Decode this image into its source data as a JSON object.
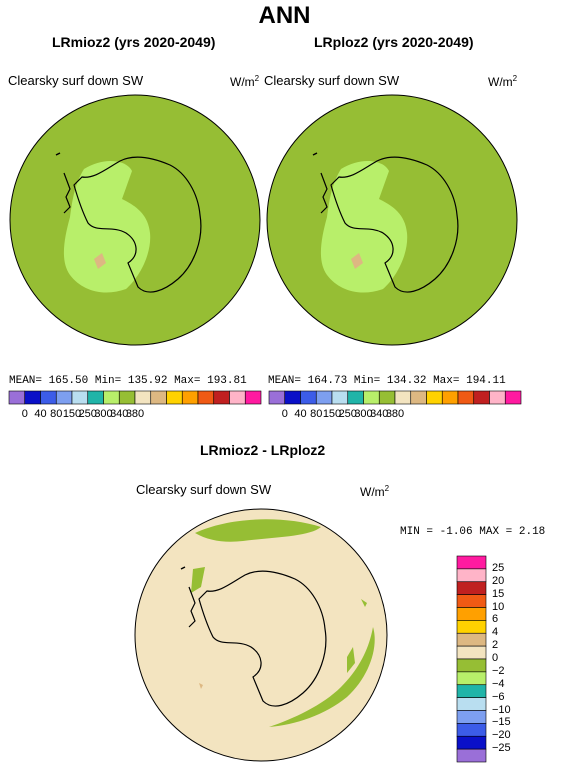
{
  "title": "ANN",
  "panels": [
    {
      "title": "LRmioz2 (yrs 2020-2049)",
      "variable": "Clearsky surf down SW",
      "units_base": "W/m",
      "units_exp": "2",
      "stats": {
        "mean_label": "MEAN=",
        "mean": "165.50",
        "min_label": "Min=",
        "min": "135.92",
        "max_label": "Max=",
        "max": "193.81"
      }
    },
    {
      "title": "LRploz2 (yrs 2020-2049)",
      "variable": "Clearsky surf down SW",
      "units_base": "W/m",
      "units_exp": "2",
      "stats": {
        "mean_label": "MEAN=",
        "mean": "164.73",
        "min_label": "Min=",
        "min": "134.32",
        "max_label": "Max=",
        "max": "194.11"
      }
    }
  ],
  "top_colorbar": {
    "labels": [
      "0",
      "40",
      "80",
      "150",
      "250",
      "300",
      "340",
      "380"
    ],
    "colors": [
      "#9a6fd8",
      "#0a10c8",
      "#3c5ce8",
      "#7d9ff0",
      "#b9def0",
      "#20b4a8",
      "#b8ef6a",
      "#96be34",
      "#f3e4c0",
      "#ddb882",
      "#ffd200",
      "#ffa000",
      "#f05a14",
      "#c02020",
      "#ffb4c8",
      "#ff1aa0"
    ]
  },
  "diff": {
    "title": "LRmioz2 - LRploz2",
    "variable": "Clearsky surf down SW",
    "units_base": "W/m",
    "units_exp": "2",
    "min_label": "MIN =",
    "min": "-1.06",
    "max_label": "MAX =",
    "max": "2.18",
    "colorbar_labels": [
      "25",
      "20",
      "15",
      "10",
      "6",
      "4",
      "2",
      "0",
      "−2",
      "−4",
      "−6",
      "−10",
      "−15",
      "−20",
      "−25"
    ],
    "colorbar_colors": [
      "#ff1aa0",
      "#ffb4c8",
      "#c02020",
      "#f05a14",
      "#ffa000",
      "#ffd200",
      "#ddb882",
      "#f3e4c0",
      "#96be34",
      "#b8ef6a",
      "#20b4a8",
      "#b9def0",
      "#7d9ff0",
      "#3c5ce8",
      "#0a10c8",
      "#9a6fd8"
    ]
  },
  "colors": {
    "green_dark": "#96be34",
    "green_light": "#b8ef6a",
    "beige": "#f3e4c0",
    "tan": "#ddb882"
  }
}
